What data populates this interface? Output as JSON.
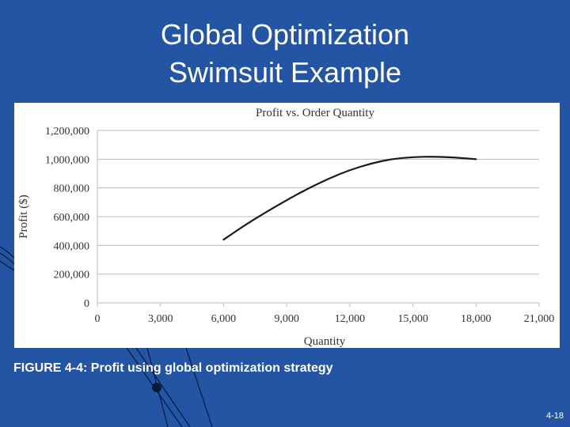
{
  "slide": {
    "title_line1": "Global Optimization",
    "title_line2": "Swimsuit Example",
    "caption": "FIGURE 4-4: Profit using global optimization strategy",
    "page_number": "4-18"
  },
  "colors": {
    "background": "#2454a4",
    "panel": "#ffffff",
    "line": "#1a1a1a",
    "grid": "#bbbbbb",
    "decoration": "#0a1a3c"
  },
  "chart_data": {
    "type": "line",
    "title": "Profit vs. Order Quantity",
    "xlabel": "Quantity",
    "ylabel": "Profit ($)",
    "xlim": [
      0,
      21000
    ],
    "ylim": [
      0,
      1200000
    ],
    "x_ticks": [
      0,
      3000,
      6000,
      9000,
      12000,
      15000,
      18000,
      21000
    ],
    "x_tick_labels": [
      "0",
      "3,000",
      "6,000",
      "9,000",
      "12,000",
      "15,000",
      "18,000",
      "21,000"
    ],
    "y_ticks": [
      0,
      200000,
      400000,
      600000,
      800000,
      1000000,
      1200000
    ],
    "y_tick_labels": [
      "0",
      "200,000",
      "400,000",
      "600,000",
      "800,000",
      "1,000,000",
      "1,200,000"
    ],
    "grid": true,
    "series": [
      {
        "name": "Profit",
        "x": [
          6000,
          7000,
          8000,
          9000,
          10000,
          11000,
          12000,
          13000,
          14000,
          15000,
          16000,
          17000,
          18000
        ],
        "y": [
          440000,
          540000,
          630000,
          715000,
          795000,
          865000,
          925000,
          970000,
          1002000,
          1015000,
          1018000,
          1012000,
          1000000
        ]
      }
    ]
  }
}
